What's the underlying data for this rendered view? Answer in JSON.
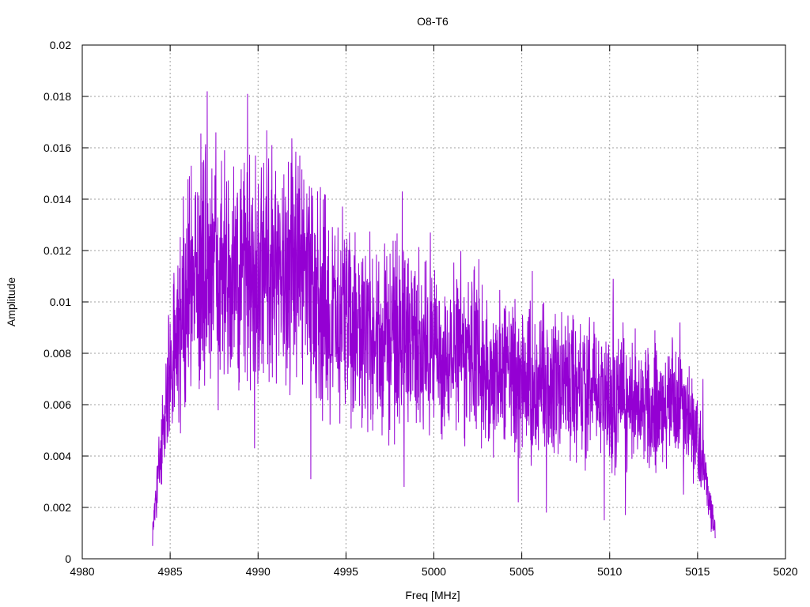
{
  "chart_data": {
    "type": "line",
    "title": "O8-T6",
    "xlabel": "Freq [MHz]",
    "ylabel": "Amplitude",
    "xlim": [
      4980,
      5020
    ],
    "ylim": [
      0,
      0.02
    ],
    "xticks": [
      4980,
      4985,
      4990,
      4995,
      5000,
      5005,
      5010,
      5015,
      5020
    ],
    "yticks": [
      0,
      0.002,
      0.004,
      0.006,
      0.008,
      0.01,
      0.012,
      0.014,
      0.016,
      0.018,
      0.02
    ],
    "xtick_labels": [
      "4980",
      "4985",
      "4990",
      "4995",
      "5000",
      "5005",
      "5010",
      "5015",
      "5020"
    ],
    "ytick_labels": [
      "0",
      "0.002",
      "0.004",
      "0.006",
      "0.008",
      "0.01",
      "0.012",
      "0.014",
      "0.016",
      "0.018",
      "0.02"
    ],
    "grid": true,
    "series": [
      {
        "color": "#9400d3",
        "x_start": 4984.0,
        "x_end": 5016.0,
        "envelope": {
          "x": [
            4984.0,
            4984.3,
            4984.6,
            4985.0,
            4985.5,
            4986.0,
            4986.5,
            4987.0,
            4988.0,
            4989.0,
            4990.0,
            4991.0,
            4992.0,
            4993.0,
            4994.0,
            4995.0,
            4996.0,
            4997.0,
            4998.0,
            4999.0,
            5000.0,
            5001.0,
            5002.0,
            5003.0,
            5004.0,
            5005.0,
            5006.0,
            5007.0,
            5008.0,
            5009.0,
            5010.0,
            5011.0,
            5012.0,
            5013.0,
            5014.0,
            5014.8,
            5015.2,
            5015.6,
            5016.0
          ],
          "y": [
            0.0012,
            0.003,
            0.005,
            0.0072,
            0.0088,
            0.0108,
            0.0112,
            0.0113,
            0.011,
            0.0108,
            0.0112,
            0.0115,
            0.011,
            0.0105,
            0.0098,
            0.0092,
            0.0088,
            0.0086,
            0.0086,
            0.0083,
            0.0082,
            0.0081,
            0.008,
            0.0077,
            0.0074,
            0.0071,
            0.0068,
            0.0066,
            0.0066,
            0.0065,
            0.0063,
            0.0062,
            0.0061,
            0.006,
            0.0058,
            0.0052,
            0.004,
            0.0025,
            0.0012
          ]
        },
        "peaks": [
          {
            "x": 4987.1,
            "y": 0.0182
          },
          {
            "x": 4989.4,
            "y": 0.0181
          },
          {
            "x": 4987.6,
            "y": 0.0166
          },
          {
            "x": 4993.0,
            "y": 0.0163
          },
          {
            "x": 4986.2,
            "y": 0.0153
          },
          {
            "x": 4991.0,
            "y": 0.0151
          },
          {
            "x": 4998.2,
            "y": 0.0143
          },
          {
            "x": 4999.8,
            "y": 0.0127
          },
          {
            "x": 5005.6,
            "y": 0.0112
          },
          {
            "x": 5010.2,
            "y": 0.0109
          },
          {
            "x": 5014.0,
            "y": 0.0092
          },
          {
            "x": 5015.3,
            "y": 0.007
          }
        ],
        "troughs": [
          {
            "x": 4993.0,
            "y": 0.0031
          },
          {
            "x": 4989.8,
            "y": 0.0043
          },
          {
            "x": 4998.3,
            "y": 0.0028
          },
          {
            "x": 5004.8,
            "y": 0.0022
          },
          {
            "x": 5006.4,
            "y": 0.0018
          },
          {
            "x": 5009.7,
            "y": 0.0015
          },
          {
            "x": 5010.9,
            "y": 0.0017
          },
          {
            "x": 5014.2,
            "y": 0.0025
          },
          {
            "x": 5016.0,
            "y": 0.0008
          }
        ]
      }
    ]
  }
}
